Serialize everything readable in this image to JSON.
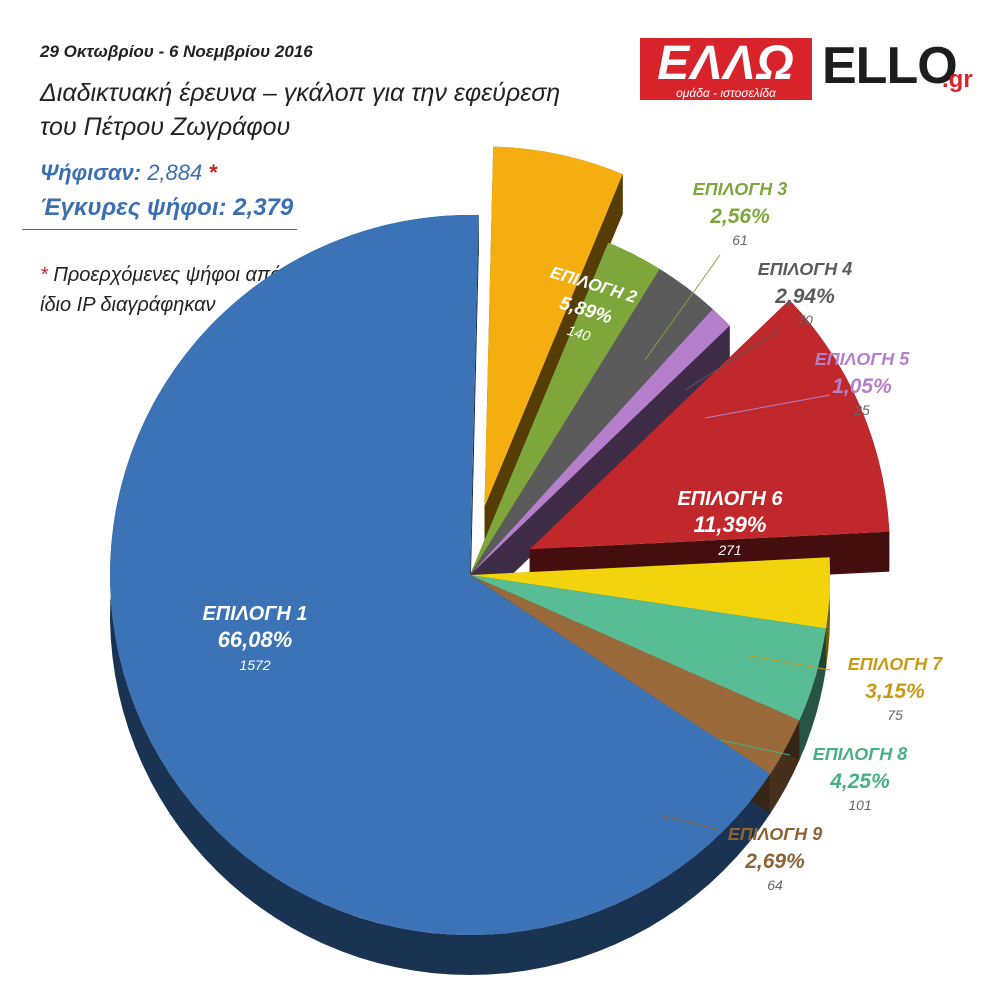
{
  "header": {
    "date": "29 Οκτωβρίου - 6 Νοεμβρίου 2016",
    "title_line1": "Διαδικτυακή έρευνα – γκάλοπ για την εφεύρεση",
    "title_line2": "του Πέτρου Ζωγράφου",
    "voted_label": "Ψήφισαν:",
    "voted_value": "2,884",
    "voted_star": "*",
    "valid_label": "Έγκυρες ψήφοι:",
    "valid_value": "2,379",
    "note_star": "*",
    "note_line1": "Προερχόμενες ψήφοι από",
    "note_line2": "ίδιο IP διαγράφηκαν"
  },
  "logo": {
    "greek": "ΕΛΛΩ",
    "subtitle": "ομάδα - ιστοσελίδα",
    "text": "ELLO",
    "suffix": ".gr",
    "brand_color": "#d8232a"
  },
  "chart_data": {
    "type": "pie",
    "title": "",
    "slices": [
      {
        "label": "ΕΠΙΛΟΓΗ 1",
        "percent": "66,08%",
        "count": "1572",
        "value": 1572,
        "color": "#3c72b6"
      },
      {
        "label": "ΕΠΙΛΟΓΗ 2",
        "percent": "5,89%",
        "count": "140",
        "value": 140,
        "color": "#f5ae0f"
      },
      {
        "label": "ΕΠΙΛΟΓΗ 3",
        "percent": "2,56%",
        "count": "61",
        "value": 61,
        "color": "#7ea63a"
      },
      {
        "label": "ΕΠΙΛΟΓΗ 4",
        "percent": "2,94%",
        "count": "70",
        "value": 70,
        "color": "#5b5b5b"
      },
      {
        "label": "ΕΠΙΛΟΓΗ 5",
        "percent": "1,05%",
        "count": "25",
        "value": 25,
        "color": "#b57fcc"
      },
      {
        "label": "ΕΠΙΛΟΓΗ 6",
        "percent": "11,39%",
        "count": "271",
        "value": 271,
        "color": "#c1282b"
      },
      {
        "label": "ΕΠΙΛΟΓΗ 7",
        "percent": "3,15%",
        "count": "75",
        "value": 75,
        "color": "#f2d40c"
      },
      {
        "label": "ΕΠΙΛΟΓΗ 8",
        "percent": "4,25%",
        "count": "101",
        "value": 101,
        "color": "#58bd94"
      },
      {
        "label": "ΕΠΙΛΟΓΗ 9",
        "percent": "2,69%",
        "count": "64",
        "value": 64,
        "color": "#9b6a3b"
      }
    ],
    "label_colors": {
      "ΕΠΙΛΟΓΗ 3": "#7ea63a",
      "ΕΠΙΛΟΓΗ 4": "#5b5b5b",
      "ΕΠΙΛΟΓΗ 5": "#b57fcc",
      "ΕΠΙΛΟΓΗ 7": "#c99a14",
      "ΕΠΙΛΟΓΗ 8": "#45b184",
      "ΕΠΙΛΟΓΗ 9": "#8f6236"
    }
  }
}
